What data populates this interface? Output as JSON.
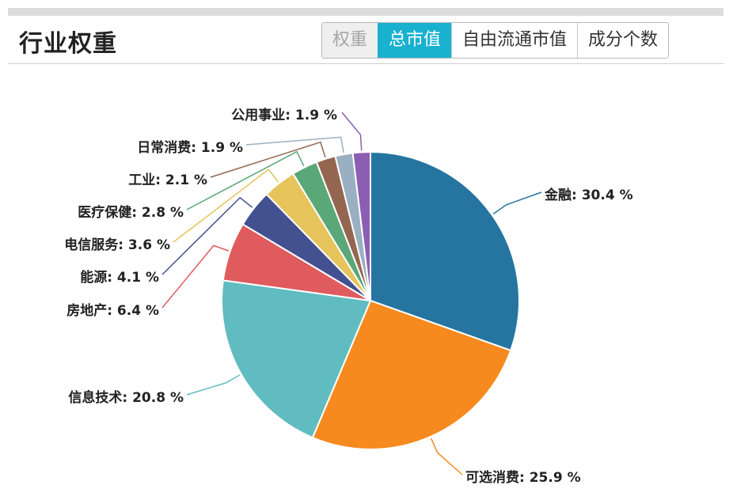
{
  "title": "行业权重",
  "tabs": [
    {
      "label": "权重",
      "state": "disabled"
    },
    {
      "label": "总市值",
      "state": "active"
    },
    {
      "label": "自由流通市值",
      "state": "normal"
    },
    {
      "label": "成分个数",
      "state": "normal"
    }
  ],
  "chart_data": {
    "type": "pie",
    "title": "",
    "legend": "none",
    "slices": [
      {
        "label": "金融: 30.4 %",
        "name": "金融",
        "value": 30.4,
        "color": "#2575a0"
      },
      {
        "label": "可选消费: 25.9 %",
        "name": "可选消费",
        "value": 25.9,
        "color": "#f68a1e"
      },
      {
        "label": "信息技术: 20.8 %",
        "name": "信息技术",
        "value": 20.8,
        "color": "#60bcc0"
      },
      {
        "label": "房地产: 6.4 %",
        "name": "房地产",
        "value": 6.4,
        "color": "#e05b5d"
      },
      {
        "label": "能源: 4.1 %",
        "name": "能源",
        "value": 4.1,
        "color": "#435191"
      },
      {
        "label": "电信服务: 3.6 %",
        "name": "电信服务",
        "value": 3.6,
        "color": "#e7c35b"
      },
      {
        "label": "医疗保健: 2.8 %",
        "name": "医疗保健",
        "value": 2.8,
        "color": "#5aa878"
      },
      {
        "label": "工业: 2.1 %",
        "name": "工业",
        "value": 2.1,
        "color": "#946650"
      },
      {
        "label": "日常消费: 1.9 %",
        "name": "日常消费",
        "value": 1.9,
        "color": "#9bafc2"
      },
      {
        "label": "公用事业: 1.9 %",
        "name": "公用事业",
        "value": 1.9,
        "color": "#8b5eb4"
      }
    ]
  }
}
